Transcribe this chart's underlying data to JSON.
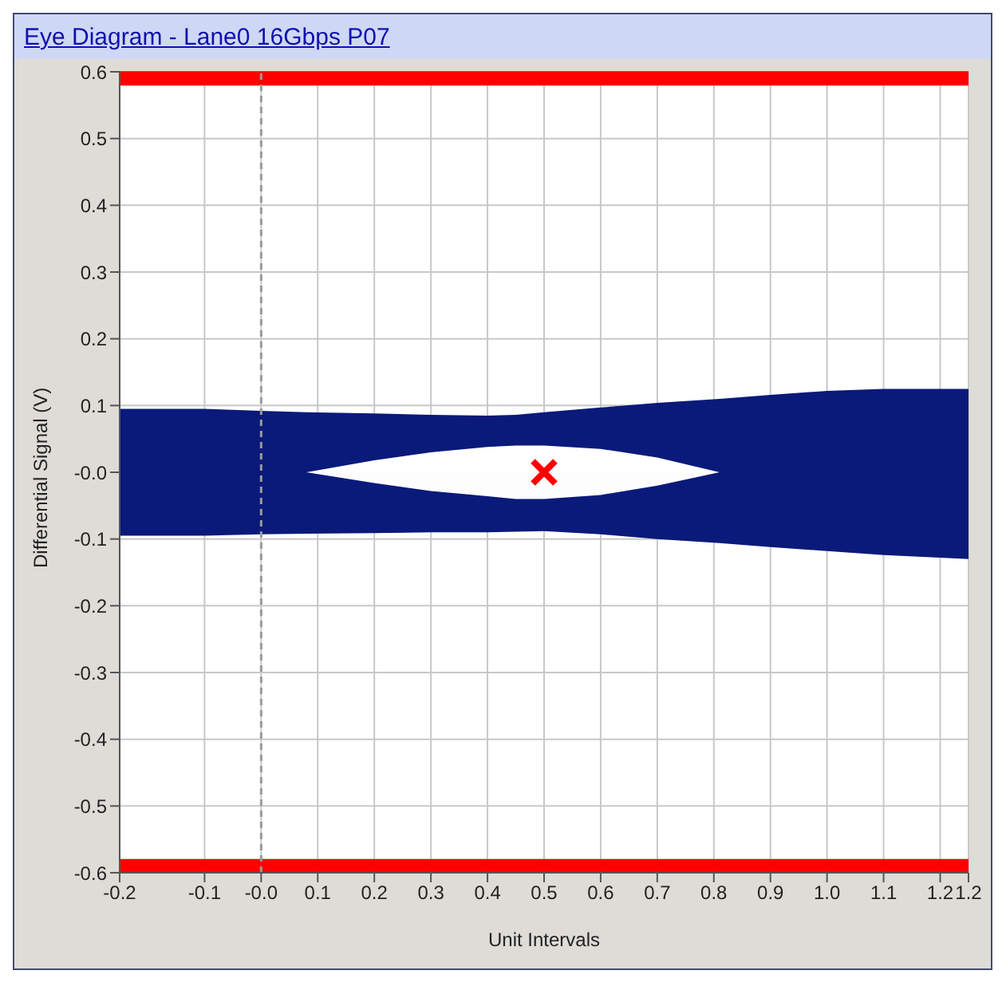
{
  "chart_data": {
    "type": "area",
    "title": "Eye Diagram - Lane0 16Gbps P07",
    "xlabel": "Unit Intervals",
    "ylabel": "Differential Signal  (V)",
    "x": [
      -0.25,
      -0.1,
      0,
      0.08,
      0.2,
      0.3,
      0.4,
      0.45,
      0.5,
      0.6,
      0.7,
      0.81,
      0.9,
      1.0,
      1.1,
      1.25
    ],
    "series": [
      {
        "color": "#0a1a7a",
        "values": [
          0.095,
          0.095,
          0.092,
          0.09,
          0.088,
          0.086,
          0.085,
          0.086,
          0.09,
          0.097,
          0.104,
          0.11,
          0.116,
          0.122,
          0.125,
          0.125
        ]
      },
      {
        "color": "#0a1a7a",
        "values": [
          -0.095,
          -0.095,
          -0.093,
          -0.092,
          -0.091,
          -0.09,
          -0.09,
          -0.089,
          -0.088,
          -0.093,
          -0.1,
          -0.106,
          -0.112,
          -0.118,
          -0.124,
          -0.13
        ]
      },
      {
        "color": "#ffffff",
        "values": [
          0,
          0,
          0,
          0,
          0.018,
          0.03,
          0.038,
          0.04,
          0.04,
          0.035,
          0.022,
          0,
          0,
          0,
          0,
          0
        ]
      },
      {
        "color": "#fdfdfd",
        "values": [
          0,
          0,
          0,
          0,
          -0.016,
          -0.028,
          -0.036,
          -0.04,
          -0.04,
          -0.034,
          -0.02,
          0,
          0,
          0,
          0,
          0
        ]
      },
      {
        "type": "scatter",
        "color": "#ff0000",
        "marker": "cross",
        "x": [
          0.5
        ],
        "values": [
          0
        ]
      }
    ],
    "xlim": [
      -0.25,
      1.25
    ],
    "xticks": [
      {
        "value": -0.25,
        "label": "-0.2"
      },
      -0.1,
      {
        "value": 0,
        "label": "-0.0"
      },
      0.1,
      0.2,
      0.3,
      0.4,
      0.5,
      0.6,
      0.7,
      0.8,
      0.9,
      {
        "value": 1,
        "label": "1.0"
      },
      1.1,
      1.2,
      {
        "value": 1.25,
        "label": "1.2"
      }
    ],
    "ylim": [
      -0.6,
      0.6
    ],
    "yticks": [
      -0.6,
      -0.5,
      -0.4,
      -0.3,
      -0.2,
      -0.1,
      {
        "value": 0,
        "label": "-0.0"
      },
      0.1,
      0.2,
      0.3,
      0.4,
      0.5,
      0.6
    ],
    "ref_lines": [
      {
        "axis": "y",
        "value": 0.59,
        "color": "#ff0000",
        "line_style": "solid"
      },
      {
        "axis": "y",
        "value": -0.59,
        "color": "#ff0000",
        "line_style": "solid"
      },
      {
        "axis": "x",
        "value": 0,
        "color": "#9a9a9a",
        "line_style": "dashed"
      }
    ],
    "grid": true
  }
}
